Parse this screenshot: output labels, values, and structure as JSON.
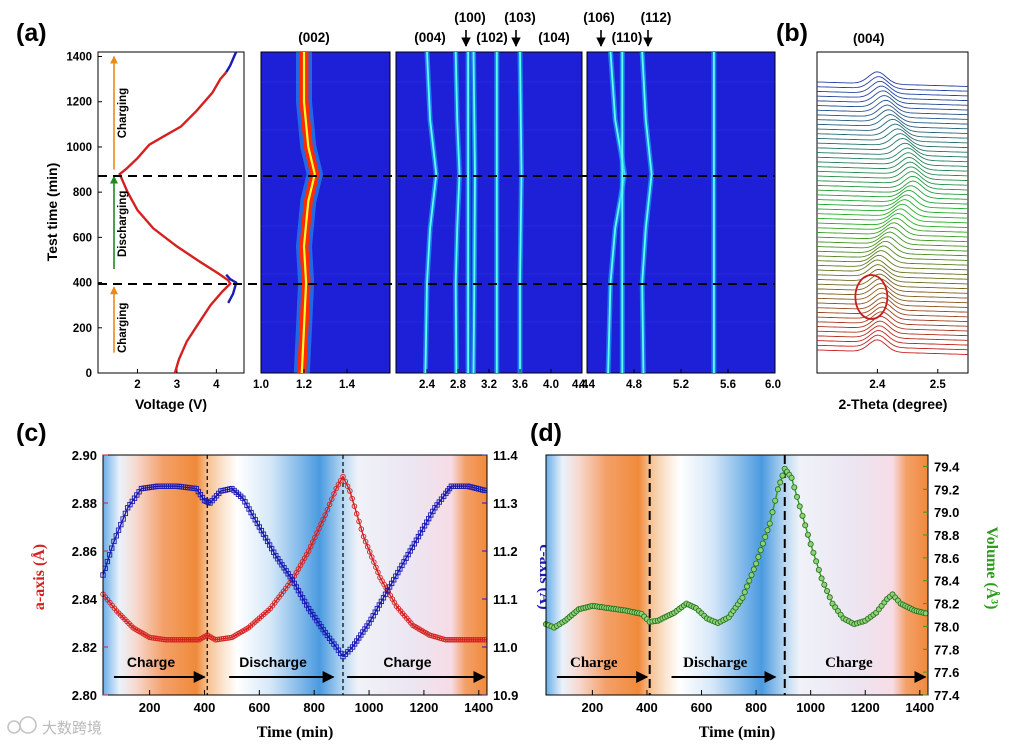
{
  "panels": {
    "a": "(a)",
    "b": "(b)",
    "c": "(c)",
    "d": "(d)"
  },
  "watermark": "大数跨境",
  "colors": {
    "red": "#d62020",
    "blue": "#1a1ab4",
    "green": "#2e9a1e",
    "charge_arrow": "#e88a1a",
    "discharge_arrow": "#1e8a1e",
    "map_bg": "#1e20d8",
    "orange_band": "#f08a3a",
    "blue_band": "#4a9ae0"
  },
  "chart_data": [
    {
      "id": "a-voltage",
      "type": "line",
      "xlabel": "Voltage (V)",
      "ylabel": "Test time (min)",
      "xlim": [
        1,
        4.7
      ],
      "ylim": [
        0,
        1420
      ],
      "x_ticks": [
        "2",
        "3",
        "4"
      ],
      "y_ticks": [
        "0",
        "200",
        "400",
        "600",
        "800",
        "1000",
        "1200",
        "1400"
      ],
      "annotations": [
        "Charging",
        "Discharging",
        "Charging"
      ],
      "dashed_lines_time": [
        400,
        880
      ],
      "series": [
        {
          "color": "#d62020",
          "points": [
            [
              2.95,
              0
            ],
            [
              3.05,
              60
            ],
            [
              3.25,
              140
            ],
            [
              3.55,
              220
            ],
            [
              3.85,
              300
            ],
            [
              4.15,
              360
            ],
            [
              4.35,
              395
            ],
            [
              4.3,
              410
            ],
            [
              4.05,
              440
            ],
            [
              3.6,
              490
            ],
            [
              3.0,
              560
            ],
            [
              2.4,
              640
            ],
            [
              2.0,
              720
            ],
            [
              1.75,
              800
            ],
            [
              1.6,
              860
            ],
            [
              1.55,
              880
            ],
            [
              1.7,
              900
            ],
            [
              2.0,
              950
            ],
            [
              2.3,
              1010
            ],
            [
              2.7,
              1050
            ],
            [
              3.1,
              1090
            ],
            [
              3.5,
              1160
            ],
            [
              3.9,
              1240
            ],
            [
              4.1,
              1300
            ],
            [
              4.25,
              1330
            ]
          ]
        },
        {
          "color": "#1a1ab4",
          "points": [
            [
              4.25,
              1330
            ],
            [
              4.35,
              1360
            ],
            [
              4.45,
              1400
            ],
            [
              4.5,
              1420
            ]
          ]
        },
        {
          "color": "#1a1ab4",
          "points": [
            [
              4.3,
              310
            ],
            [
              4.42,
              350
            ],
            [
              4.48,
              385
            ],
            [
              4.5,
              400
            ],
            [
              4.35,
              415
            ],
            [
              4.25,
              435
            ]
          ]
        }
      ]
    },
    {
      "id": "a-map-002",
      "type": "heatmap",
      "xlabel": "2-Theta (degree)",
      "xlim": [
        1.0,
        1.6
      ],
      "ylim": [
        0,
        1420
      ],
      "x_ticks": [
        "1.0",
        "1.2",
        "1.4"
      ],
      "peak_labels": [
        "(002)"
      ],
      "peaks": [
        {
          "points": [
            [
              1.19,
              0
            ],
            [
              1.2,
              200
            ],
            [
              1.21,
              400
            ],
            [
              1.2,
              560
            ],
            [
              1.22,
              760
            ],
            [
              1.25,
              880
            ],
            [
              1.22,
              1000
            ],
            [
              1.2,
              1200
            ],
            [
              1.2,
              1420
            ]
          ]
        }
      ]
    },
    {
      "id": "a-map-mid",
      "type": "heatmap",
      "xlim": [
        2.0,
        4.4
      ],
      "ylim": [
        0,
        1420
      ],
      "x_ticks": [
        "2.4",
        "2.8",
        "3.2",
        "3.6",
        "4.0",
        "4.4"
      ],
      "peak_labels": [
        "(004)",
        "(100)",
        "(102)",
        "(103)",
        "(104)"
      ],
      "peaks": [
        {
          "points": [
            [
              2.38,
              0
            ],
            [
              2.4,
              400
            ],
            [
              2.44,
              640
            ],
            [
              2.52,
              880
            ],
            [
              2.44,
              1120
            ],
            [
              2.4,
              1420
            ]
          ]
        },
        {
          "points": [
            [
              2.78,
              0
            ],
            [
              2.77,
              400
            ],
            [
              2.79,
              640
            ],
            [
              2.82,
              880
            ],
            [
              2.79,
              1120
            ],
            [
              2.77,
              1420
            ]
          ]
        },
        {
          "points": [
            [
              2.93,
              0
            ],
            [
              2.93,
              1420
            ]
          ]
        },
        {
          "points": [
            [
              3.0,
              0
            ],
            [
              3.01,
              400
            ],
            [
              3.02,
              880
            ],
            [
              3.0,
              1420
            ]
          ]
        },
        {
          "points": [
            [
              3.3,
              0
            ],
            [
              3.3,
              1420
            ]
          ]
        },
        {
          "points": [
            [
              3.6,
              0
            ],
            [
              3.6,
              400
            ],
            [
              3.62,
              880
            ],
            [
              3.6,
              1420
            ]
          ]
        }
      ]
    },
    {
      "id": "a-map-high",
      "type": "heatmap",
      "xlim": [
        4.4,
        6.0
      ],
      "ylim": [
        0,
        1420
      ],
      "x_ticks": [
        "4.4",
        "4.8",
        "5.2",
        "5.6",
        "6.0"
      ],
      "peak_labels": [
        "(106)",
        "(110)",
        "(112)"
      ],
      "peaks": [
        {
          "points": [
            [
              4.58,
              0
            ],
            [
              4.6,
              400
            ],
            [
              4.64,
              640
            ],
            [
              4.72,
              880
            ],
            [
              4.64,
              1120
            ],
            [
              4.6,
              1420
            ]
          ]
        },
        {
          "points": [
            [
              4.7,
              0
            ],
            [
              4.7,
              1420
            ]
          ]
        },
        {
          "points": [
            [
              4.88,
              0
            ],
            [
              4.87,
              400
            ],
            [
              4.9,
              640
            ],
            [
              4.95,
              880
            ],
            [
              4.9,
              1120
            ],
            [
              4.87,
              1420
            ]
          ]
        },
        {
          "points": [
            [
              5.48,
              0
            ],
            [
              5.48,
              1420
            ]
          ]
        }
      ]
    },
    {
      "id": "b-waterfall",
      "type": "line",
      "title": "(004)",
      "xlabel": "2-Theta (degree)",
      "xlim": [
        2.3,
        2.55
      ],
      "x_ticks": [
        "2.4",
        "2.5"
      ],
      "n_curves": 58,
      "peak_path": [
        [
          0,
          2.4
        ],
        [
          0.15,
          2.41
        ],
        [
          0.3,
          2.4
        ],
        [
          0.45,
          2.43
        ],
        [
          0.6,
          2.46
        ],
        [
          0.72,
          2.45
        ],
        [
          0.85,
          2.42
        ],
        [
          1,
          2.4
        ]
      ],
      "highlight": "circle"
    },
    {
      "id": "c-lattice",
      "type": "scatter",
      "xlabel": "Time (min)",
      "ylabel": "a-axis (Å)",
      "y2label": "c-axis (Å)",
      "xlim": [
        30,
        1430
      ],
      "ylim": [
        2.8,
        2.9
      ],
      "y2lim": [
        10.9,
        11.4
      ],
      "x_ticks": [
        "200",
        "400",
        "600",
        "800",
        "1000",
        "1200",
        "1400"
      ],
      "y_ticks": [
        "2.80",
        "2.82",
        "2.84",
        "2.86",
        "2.88",
        "2.90"
      ],
      "y2_ticks": [
        "10.9",
        "11.0",
        "11.1",
        "11.2",
        "11.3",
        "11.4"
      ],
      "phases": [
        "Charge",
        "Discharge",
        "Charge"
      ],
      "dashed_lines_time": [
        410,
        905
      ],
      "series": [
        {
          "axis": "left",
          "color": "#d62020",
          "points": [
            [
              30,
              2.842
            ],
            [
              80,
              2.835
            ],
            [
              140,
              2.828
            ],
            [
              200,
              2.824
            ],
            [
              260,
              2.823
            ],
            [
              320,
              2.823
            ],
            [
              380,
              2.823
            ],
            [
              410,
              2.825
            ],
            [
              440,
              2.823
            ],
            [
              500,
              2.824
            ],
            [
              560,
              2.828
            ],
            [
              640,
              2.836
            ],
            [
              720,
              2.848
            ],
            [
              780,
              2.86
            ],
            [
              840,
              2.875
            ],
            [
              880,
              2.886
            ],
            [
              905,
              2.891
            ],
            [
              930,
              2.885
            ],
            [
              980,
              2.866
            ],
            [
              1040,
              2.849
            ],
            [
              1100,
              2.837
            ],
            [
              1160,
              2.829
            ],
            [
              1220,
              2.825
            ],
            [
              1280,
              2.823
            ],
            [
              1340,
              2.823
            ],
            [
              1430,
              2.823
            ]
          ]
        },
        {
          "axis": "right",
          "color": "#1a1ab4",
          "points": [
            [
              30,
              11.15
            ],
            [
              70,
              11.22
            ],
            [
              120,
              11.29
            ],
            [
              170,
              11.33
            ],
            [
              230,
              11.335
            ],
            [
              300,
              11.335
            ],
            [
              370,
              11.33
            ],
            [
              400,
              11.305
            ],
            [
              420,
              11.3
            ],
            [
              460,
              11.325
            ],
            [
              500,
              11.33
            ],
            [
              540,
              11.31
            ],
            [
              600,
              11.25
            ],
            [
              660,
              11.19
            ],
            [
              720,
              11.14
            ],
            [
              780,
              11.08
            ],
            [
              840,
              11.03
            ],
            [
              880,
              11.0
            ],
            [
              905,
              10.98
            ],
            [
              940,
              11.0
            ],
            [
              1000,
              11.05
            ],
            [
              1060,
              11.11
            ],
            [
              1120,
              11.17
            ],
            [
              1180,
              11.23
            ],
            [
              1240,
              11.29
            ],
            [
              1280,
              11.32
            ],
            [
              1300,
              11.335
            ],
            [
              1360,
              11.335
            ],
            [
              1430,
              11.325
            ]
          ]
        }
      ]
    },
    {
      "id": "d-volume",
      "type": "scatter",
      "xlabel": "Time (min)",
      "ylabel": "Volume (Å³)",
      "xlim": [
        30,
        1430
      ],
      "ylim": [
        77.4,
        79.5
      ],
      "x_ticks": [
        "200",
        "400",
        "600",
        "800",
        "1000",
        "1200",
        "1400"
      ],
      "y_ticks": [
        "77.4",
        "77.6",
        "77.8",
        "78.0",
        "78.2",
        "78.4",
        "78.6",
        "78.8",
        "79.0",
        "79.2",
        "79.4"
      ],
      "phases": [
        "Charge",
        "Discharge",
        "Charge"
      ],
      "dashed_lines_time": [
        410,
        905
      ],
      "series": [
        {
          "color": "#2e9a1e",
          "points": [
            [
              30,
              78.02
            ],
            [
              60,
              77.99
            ],
            [
              100,
              78.05
            ],
            [
              150,
              78.15
            ],
            [
              200,
              78.18
            ],
            [
              260,
              78.16
            ],
            [
              320,
              78.14
            ],
            [
              380,
              78.11
            ],
            [
              410,
              78.04
            ],
            [
              440,
              78.05
            ],
            [
              500,
              78.12
            ],
            [
              545,
              78.2
            ],
            [
              580,
              78.16
            ],
            [
              620,
              78.07
            ],
            [
              660,
              78.03
            ],
            [
              700,
              78.08
            ],
            [
              750,
              78.25
            ],
            [
              800,
              78.55
            ],
            [
              850,
              78.9
            ],
            [
              880,
              79.2
            ],
            [
              905,
              79.38
            ],
            [
              930,
              79.3
            ],
            [
              960,
              79.05
            ],
            [
              1000,
              78.72
            ],
            [
              1040,
              78.42
            ],
            [
              1080,
              78.2
            ],
            [
              1120,
              78.07
            ],
            [
              1160,
              78.02
            ],
            [
              1200,
              78.05
            ],
            [
              1240,
              78.12
            ],
            [
              1280,
              78.24
            ],
            [
              1300,
              78.28
            ],
            [
              1330,
              78.2
            ],
            [
              1380,
              78.14
            ],
            [
              1430,
              78.11
            ]
          ]
        }
      ]
    }
  ]
}
